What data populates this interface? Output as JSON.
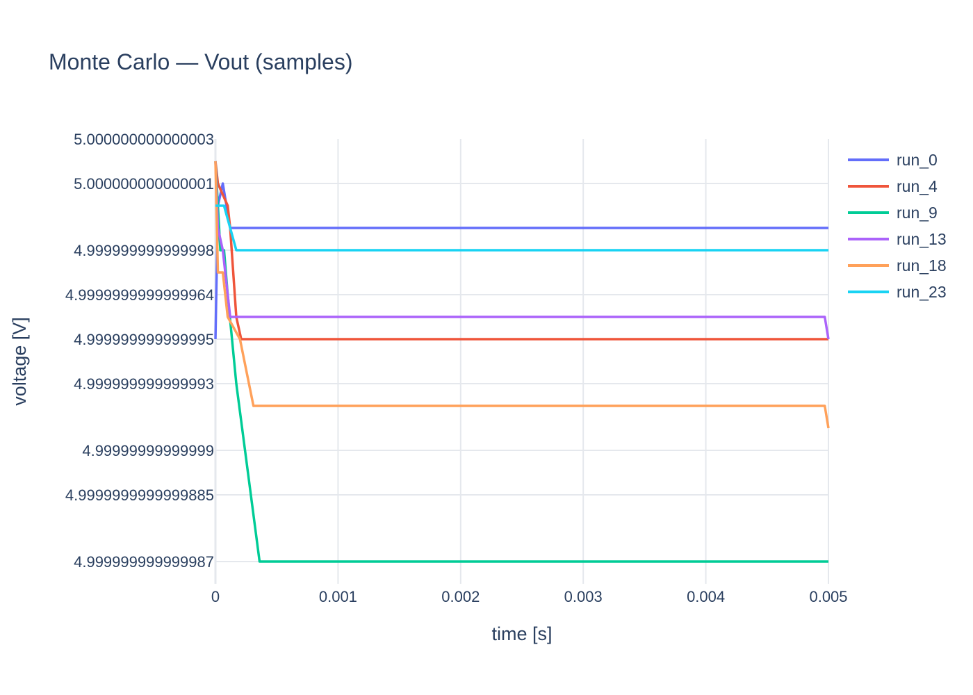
{
  "chart_data": {
    "type": "line",
    "title": "Monte Carlo — Vout (samples)",
    "xlabel": "time [s]",
    "ylabel": "voltage [V]",
    "xlim": [
      0,
      0.005
    ],
    "ylim": [
      4.999999999999986,
      5.000000000000003
    ],
    "x_ticks": [
      {
        "value": 0,
        "label": "0"
      },
      {
        "value": 0.001,
        "label": "0.001"
      },
      {
        "value": 0.002,
        "label": "0.002"
      },
      {
        "value": 0.003,
        "label": "0.003"
      },
      {
        "value": 0.004,
        "label": "0.004"
      },
      {
        "value": 0.005,
        "label": "0.005"
      }
    ],
    "y_ticks": [
      {
        "value": 5.000000000000003,
        "label": "5.000000000000003"
      },
      {
        "value": 5.000000000000001,
        "label": "5.000000000000001"
      },
      {
        "value": 4.999999999999998,
        "label": "4.999999999999998"
      },
      {
        "value": 4.9999999999999964,
        "label": "4.9999999999999964"
      },
      {
        "value": 4.999999999999995,
        "label": "4.999999999999995"
      },
      {
        "value": 4.999999999999993,
        "label": "4.999999999999993"
      },
      {
        "value": 4.99999999999999,
        "label": "4.99999999999999"
      },
      {
        "value": 4.9999999999999885,
        "label": "4.9999999999999885"
      },
      {
        "value": 4.999999999999987,
        "label": "4.999999999999987"
      }
    ],
    "grid": true,
    "legend_position": "top-right",
    "series": [
      {
        "name": "run_0",
        "color": "#636efa",
        "x": [
          0,
          2e-05,
          6e-05,
          0.00012,
          0.005
        ],
        "y": [
          4.999999999999995,
          5.0,
          5.000000000000001,
          4.999999999999999,
          4.999999999999999
        ]
      },
      {
        "name": "run_4",
        "color": "#ef553b",
        "x": [
          0,
          2e-05,
          0.0001,
          0.00012,
          0.00017,
          0.00021,
          0.005
        ],
        "y": [
          5.000000000000002,
          5.000000000000001,
          5.0,
          4.999999999999999,
          4.999999999999996,
          4.999999999999995,
          4.999999999999995
        ]
      },
      {
        "name": "run_9",
        "color": "#00cc96",
        "x": [
          0,
          2e-05,
          4e-05,
          7e-05,
          0.0001,
          0.00017,
          0.00036,
          0.005
        ],
        "y": [
          5.000000000000002,
          5.0,
          4.999999999999998,
          4.999999999999998,
          4.9999999999999964,
          4.999999999999993,
          4.999999999999987,
          4.999999999999987
        ]
      },
      {
        "name": "run_13",
        "color": "#ab63fa",
        "x": [
          0,
          2e-05,
          6e-05,
          0.0001,
          0.00012,
          0.00497,
          0.005
        ],
        "y": [
          5.000000000000002,
          4.999999999999999,
          4.999999999999998,
          4.9999999999999964,
          4.999999999999996,
          4.999999999999996,
          4.999999999999995
        ]
      },
      {
        "name": "run_18",
        "color": "#ffa15a",
        "x": [
          0,
          2e-05,
          6e-05,
          0.0001,
          0.0002,
          0.00031,
          0.00497,
          0.005
        ],
        "y": [
          5.000000000000002,
          4.999999999999997,
          4.999999999999997,
          4.999999999999996,
          4.999999999999995,
          4.999999999999992,
          4.999999999999992,
          4.999999999999991
        ]
      },
      {
        "name": "run_23",
        "color": "#19d3f3",
        "x": [
          0,
          2e-05,
          7e-05,
          0.00012,
          0.00017,
          0.005
        ],
        "y": [
          5.0,
          5.0,
          5.0,
          4.999999999999999,
          4.999999999999998,
          4.999999999999998
        ]
      }
    ]
  }
}
